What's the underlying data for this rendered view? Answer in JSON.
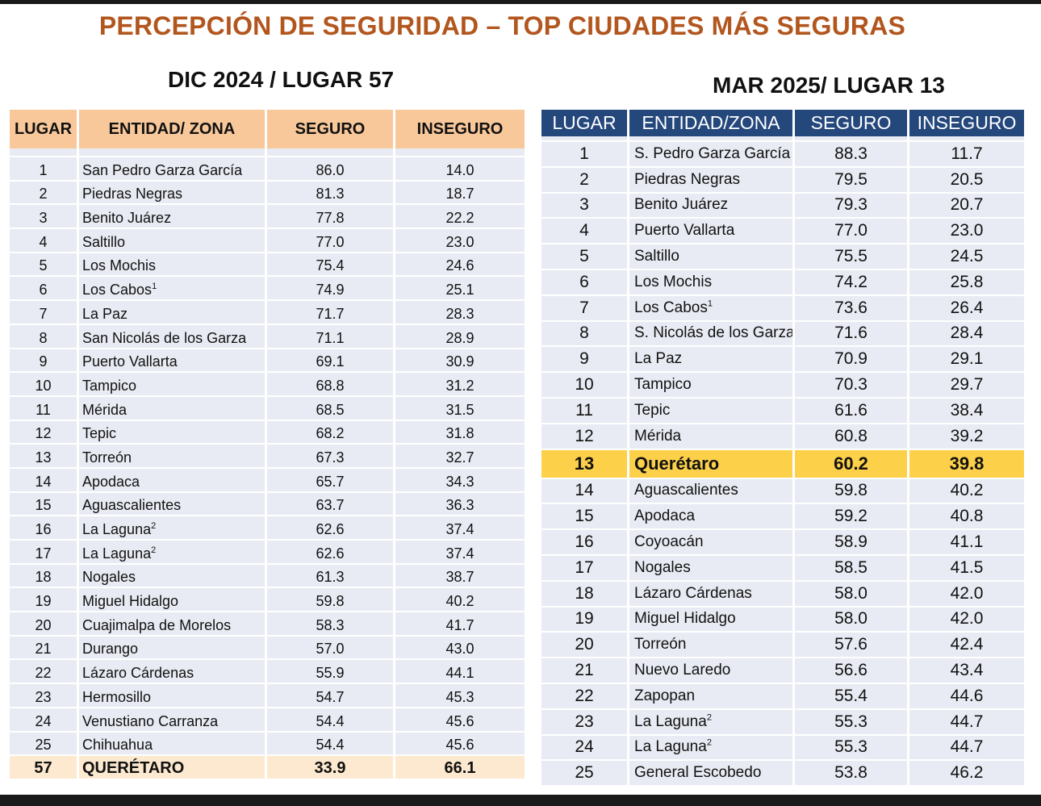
{
  "title": "PERCEPCIÓN DE SEGURIDAD – TOP CIUDADES MÁS SEGURAS",
  "colors": {
    "title": "#b2561e",
    "left_header": "#f8c89a",
    "right_header": "#24477c",
    "row_bg": "#e8ebf3",
    "highlight": "#fdd04a",
    "left_total": "#fde9cf"
  },
  "left": {
    "subtitle": "DIC 2024 / LUGAR 57",
    "headers": [
      "LUGAR",
      "ENTIDAD/ ZONA",
      "SEGURO",
      "INSEGURO"
    ],
    "rows": [
      {
        "rank": "1",
        "zone": "San Pedro Garza García",
        "sup": "",
        "seguro": "86.0",
        "inseguro": "14.0"
      },
      {
        "rank": "2",
        "zone": "Piedras Negras",
        "sup": "",
        "seguro": "81.3",
        "inseguro": "18.7"
      },
      {
        "rank": "3",
        "zone": "Benito Juárez",
        "sup": "",
        "seguro": "77.8",
        "inseguro": "22.2"
      },
      {
        "rank": "4",
        "zone": "Saltillo",
        "sup": "",
        "seguro": "77.0",
        "inseguro": "23.0"
      },
      {
        "rank": "5",
        "zone": "Los Mochis",
        "sup": "",
        "seguro": "75.4",
        "inseguro": "24.6"
      },
      {
        "rank": "6",
        "zone": "Los Cabos",
        "sup": "1",
        "seguro": "74.9",
        "inseguro": "25.1"
      },
      {
        "rank": "7",
        "zone": "La Paz",
        "sup": "",
        "seguro": "71.7",
        "inseguro": "28.3"
      },
      {
        "rank": "8",
        "zone": "San Nicolás de los Garza",
        "sup": "",
        "seguro": "71.1",
        "inseguro": "28.9"
      },
      {
        "rank": "9",
        "zone": "Puerto Vallarta",
        "sup": "",
        "seguro": "69.1",
        "inseguro": "30.9"
      },
      {
        "rank": "10",
        "zone": "Tampico",
        "sup": "",
        "seguro": "68.8",
        "inseguro": "31.2"
      },
      {
        "rank": "11",
        "zone": "Mérida",
        "sup": "",
        "seguro": "68.5",
        "inseguro": "31.5"
      },
      {
        "rank": "12",
        "zone": "Tepic",
        "sup": "",
        "seguro": "68.2",
        "inseguro": "31.8"
      },
      {
        "rank": "13",
        "zone": "Torreón",
        "sup": "",
        "seguro": "67.3",
        "inseguro": "32.7"
      },
      {
        "rank": "14",
        "zone": "Apodaca",
        "sup": "",
        "seguro": "65.7",
        "inseguro": "34.3"
      },
      {
        "rank": "15",
        "zone": "Aguascalientes",
        "sup": "",
        "seguro": "63.7",
        "inseguro": "36.3"
      },
      {
        "rank": "16",
        "zone": "La Laguna",
        "sup": "2",
        "seguro": "62.6",
        "inseguro": "37.4"
      },
      {
        "rank": "17",
        "zone": "La Laguna",
        "sup": "2",
        "seguro": "62.6",
        "inseguro": "37.4"
      },
      {
        "rank": "18",
        "zone": "Nogales",
        "sup": "",
        "seguro": "61.3",
        "inseguro": "38.7"
      },
      {
        "rank": "19",
        "zone": "Miguel Hidalgo",
        "sup": "",
        "seguro": "59.8",
        "inseguro": "40.2"
      },
      {
        "rank": "20",
        "zone": "Cuajimalpa de Morelos",
        "sup": "",
        "seguro": "58.3",
        "inseguro": "41.7"
      },
      {
        "rank": "21",
        "zone": "Durango",
        "sup": "",
        "seguro": "57.0",
        "inseguro": "43.0"
      },
      {
        "rank": "22",
        "zone": "Lázaro Cárdenas",
        "sup": "",
        "seguro": "55.9",
        "inseguro": "44.1"
      },
      {
        "rank": "23",
        "zone": "Hermosillo",
        "sup": "",
        "seguro": "54.7",
        "inseguro": "45.3"
      },
      {
        "rank": "24",
        "zone": "Venustiano Carranza",
        "sup": "",
        "seguro": "54.4",
        "inseguro": "45.6"
      },
      {
        "rank": "25",
        "zone": "Chihuahua",
        "sup": "",
        "seguro": "54.4",
        "inseguro": "45.6"
      }
    ],
    "total": {
      "rank": "57",
      "zone": "QUERÉTARO",
      "seguro": "33.9",
      "inseguro": "66.1"
    }
  },
  "right": {
    "subtitle": "MAR 2025/ LUGAR 13",
    "headers": [
      "LUGAR",
      "ENTIDAD/ZONA",
      "SEGURO",
      "INSEGURO"
    ],
    "highlight_rank": "13",
    "rows": [
      {
        "rank": "1",
        "zone": "S. Pedro Garza García",
        "sup": "",
        "seguro": "88.3",
        "inseguro": "11.7"
      },
      {
        "rank": "2",
        "zone": "Piedras Negras",
        "sup": "",
        "seguro": "79.5",
        "inseguro": "20.5"
      },
      {
        "rank": "3",
        "zone": "Benito Juárez",
        "sup": "",
        "seguro": "79.3",
        "inseguro": "20.7"
      },
      {
        "rank": "4",
        "zone": "Puerto Vallarta",
        "sup": "",
        "seguro": "77.0",
        "inseguro": "23.0"
      },
      {
        "rank": "5",
        "zone": "Saltillo",
        "sup": "",
        "seguro": "75.5",
        "inseguro": "24.5"
      },
      {
        "rank": "6",
        "zone": "Los Mochis",
        "sup": "",
        "seguro": "74.2",
        "inseguro": "25.8"
      },
      {
        "rank": "7",
        "zone": "Los Cabos",
        "sup": "1",
        "seguro": "73.6",
        "inseguro": "26.4"
      },
      {
        "rank": "8",
        "zone": "S. Nicolás de los Garza",
        "sup": "",
        "seguro": "71.6",
        "inseguro": "28.4"
      },
      {
        "rank": "9",
        "zone": "La Paz",
        "sup": "",
        "seguro": "70.9",
        "inseguro": "29.1"
      },
      {
        "rank": "10",
        "zone": "Tampico",
        "sup": "",
        "seguro": "70.3",
        "inseguro": "29.7"
      },
      {
        "rank": "11",
        "zone": "Tepic",
        "sup": "",
        "seguro": "61.6",
        "inseguro": "38.4"
      },
      {
        "rank": "12",
        "zone": "Mérida",
        "sup": "",
        "seguro": "60.8",
        "inseguro": "39.2"
      },
      {
        "rank": "13",
        "zone": "Querétaro",
        "sup": "",
        "seguro": "60.2",
        "inseguro": "39.8"
      },
      {
        "rank": "14",
        "zone": "Aguascalientes",
        "sup": "",
        "seguro": "59.8",
        "inseguro": "40.2"
      },
      {
        "rank": "15",
        "zone": "Apodaca",
        "sup": "",
        "seguro": "59.2",
        "inseguro": "40.8"
      },
      {
        "rank": "16",
        "zone": "Coyoacán",
        "sup": "",
        "seguro": "58.9",
        "inseguro": "41.1"
      },
      {
        "rank": "17",
        "zone": "Nogales",
        "sup": "",
        "seguro": "58.5",
        "inseguro": "41.5"
      },
      {
        "rank": "18",
        "zone": "Lázaro Cárdenas",
        "sup": "",
        "seguro": "58.0",
        "inseguro": "42.0"
      },
      {
        "rank": "19",
        "zone": "Miguel Hidalgo",
        "sup": "",
        "seguro": "58.0",
        "inseguro": "42.0"
      },
      {
        "rank": "20",
        "zone": "Torreón",
        "sup": "",
        "seguro": "57.6",
        "inseguro": "42.4"
      },
      {
        "rank": "21",
        "zone": "Nuevo Laredo",
        "sup": "",
        "seguro": "56.6",
        "inseguro": "43.4"
      },
      {
        "rank": "22",
        "zone": "Zapopan",
        "sup": "",
        "seguro": "55.4",
        "inseguro": "44.6"
      },
      {
        "rank": "23",
        "zone": "La Laguna",
        "sup": "2",
        "seguro": "55.3",
        "inseguro": "44.7"
      },
      {
        "rank": "24",
        "zone": "La Laguna",
        "sup": "2",
        "seguro": "55.3",
        "inseguro": "44.7"
      },
      {
        "rank": "25",
        "zone": "General Escobedo",
        "sup": "",
        "seguro": "53.8",
        "inseguro": "46.2"
      }
    ]
  }
}
